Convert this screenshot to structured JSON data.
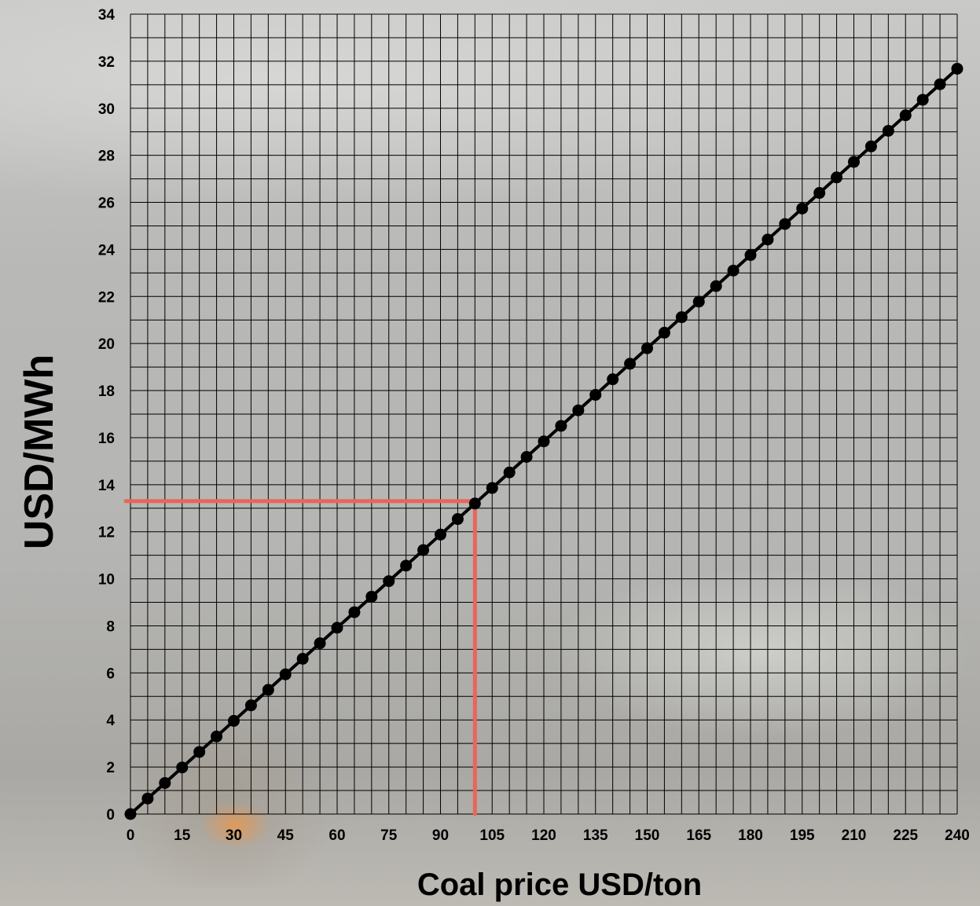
{
  "chart_data": {
    "type": "line",
    "title": "",
    "xlabel": "Coal price USD/ton",
    "ylabel": "USD/MWh",
    "xlim": [
      0,
      240
    ],
    "ylim": [
      0,
      34
    ],
    "x_ticks": [
      "0",
      "15",
      "30",
      "45",
      "60",
      "75",
      "90",
      "105",
      "120",
      "135",
      "150",
      "165",
      "180",
      "195",
      "210",
      "225",
      "240"
    ],
    "y_ticks": [
      "0",
      "2",
      "4",
      "6",
      "8",
      "10",
      "12",
      "14",
      "16",
      "18",
      "20",
      "22",
      "24",
      "26",
      "28",
      "30",
      "32",
      "34"
    ],
    "grid": true,
    "grid_minor_x_step": 5,
    "grid_minor_y_step": 1,
    "series": [
      {
        "color": "#000000",
        "marker": "circle",
        "x": [
          0,
          5,
          10,
          15,
          20,
          25,
          30,
          35,
          40,
          45,
          50,
          55,
          60,
          65,
          70,
          75,
          80,
          85,
          90,
          95,
          100,
          105,
          110,
          115,
          120,
          125,
          130,
          135,
          140,
          145,
          150,
          155,
          160,
          165,
          170,
          175,
          180,
          185,
          190,
          195,
          200,
          205,
          210,
          215,
          220,
          225,
          230,
          235,
          240
        ],
        "y": [
          0,
          0.66,
          1.32,
          1.98,
          2.64,
          3.3,
          3.96,
          4.62,
          5.28,
          5.94,
          6.6,
          7.26,
          7.92,
          8.58,
          9.24,
          9.9,
          10.56,
          11.22,
          11.88,
          12.54,
          13.2,
          13.86,
          14.52,
          15.18,
          15.84,
          16.5,
          17.16,
          17.82,
          18.48,
          19.14,
          19.8,
          20.46,
          21.12,
          21.78,
          22.44,
          23.1,
          23.76,
          24.42,
          25.08,
          25.74,
          26.4,
          27.06,
          27.72,
          28.38,
          29.04,
          29.7,
          30.36,
          31.02,
          31.68
        ]
      }
    ],
    "annotations": [
      {
        "type": "reference-lines",
        "color": "#e8665a",
        "x": 100,
        "y": 13.3
      }
    ]
  }
}
